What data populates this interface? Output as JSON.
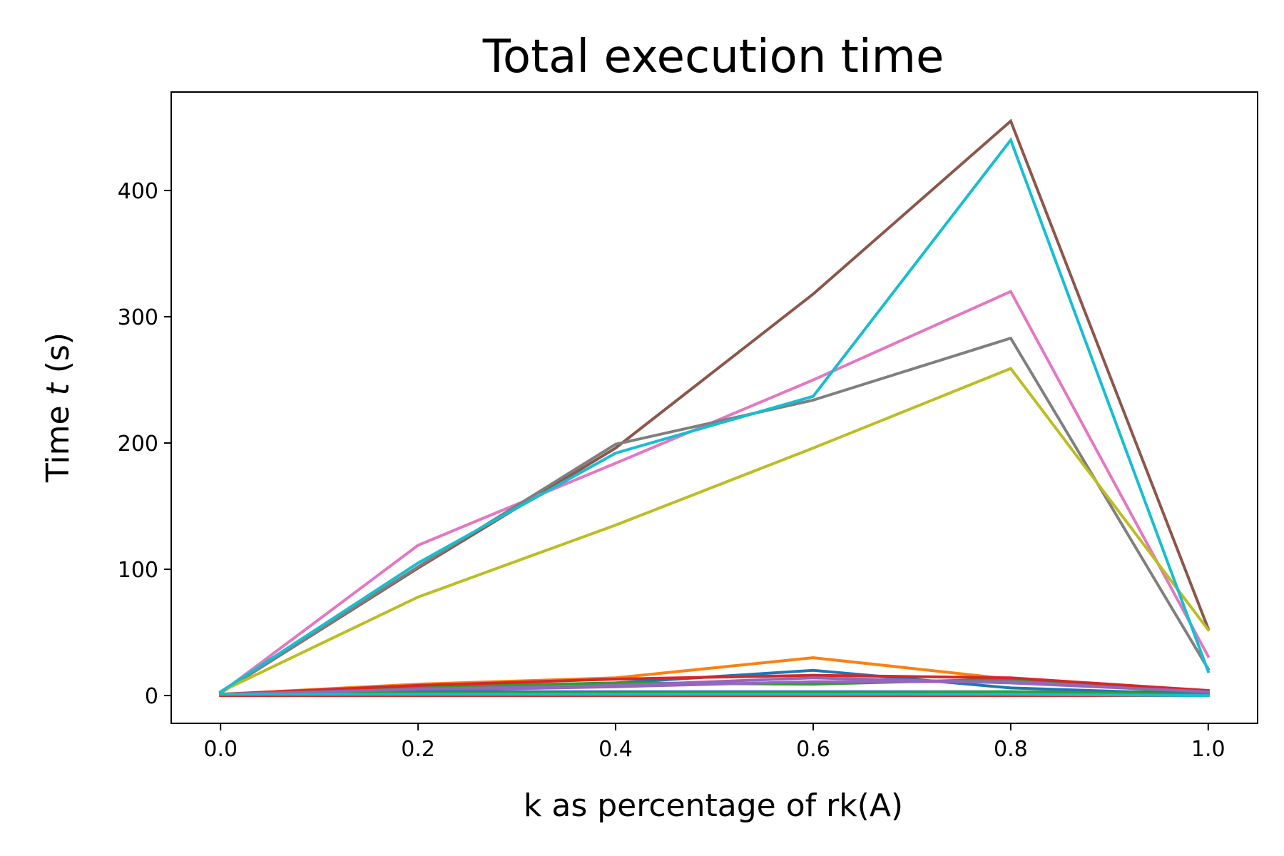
{
  "chart_data": {
    "type": "line",
    "title": "Total execution time",
    "xlabel": "k as percentage of rk(A)",
    "ylabel_prefix": "Time ",
    "ylabel_var": "t",
    "ylabel_suffix": " (s)",
    "xlim": [
      -0.05,
      1.05
    ],
    "ylim": [
      -22,
      478
    ],
    "x_ticks": [
      0.0,
      0.2,
      0.4,
      0.6,
      0.8,
      1.0
    ],
    "x_tick_labels": [
      "0.0",
      "0.2",
      "0.4",
      "0.6",
      "0.8",
      "1.0"
    ],
    "y_ticks": [
      0,
      100,
      200,
      300,
      400
    ],
    "y_tick_labels": [
      "0",
      "100",
      "200",
      "300",
      "400"
    ],
    "grid": false,
    "x": [
      0.0,
      0.2,
      0.4,
      0.6,
      0.8,
      1.0
    ],
    "series": [
      {
        "color": "#1f77b4",
        "values": [
          1,
          6,
          10,
          20,
          6,
          1
        ]
      },
      {
        "color": "#ff7f0e",
        "values": [
          1,
          9,
          14,
          30,
          13,
          2
        ]
      },
      {
        "color": "#2ca02c",
        "values": [
          1,
          7,
          10,
          9,
          13,
          1
        ]
      },
      {
        "color": "#d62728",
        "values": [
          0,
          0,
          0,
          0,
          0,
          0
        ]
      },
      {
        "color": "#9467bd",
        "values": [
          1,
          4,
          7,
          11,
          11,
          3
        ]
      },
      {
        "color": "#8c564b",
        "values": [
          2,
          101,
          196,
          318,
          455,
          53
        ]
      },
      {
        "color": "#e377c2",
        "values": [
          2,
          119,
          184,
          250,
          320,
          31
        ]
      },
      {
        "color": "#7f7f7f",
        "values": [
          2,
          102,
          199,
          234,
          283,
          21
        ]
      },
      {
        "color": "#bcbd22",
        "values": [
          3,
          78,
          135,
          196,
          259,
          52
        ]
      },
      {
        "color": "#17becf",
        "values": [
          3,
          105,
          192,
          237,
          440,
          19
        ]
      },
      {
        "color": "#1f77b4",
        "values": [
          1,
          3,
          3,
          3,
          3,
          2
        ]
      },
      {
        "color": "#ff7f0e",
        "values": [
          1,
          2,
          2,
          1,
          2,
          1
        ]
      },
      {
        "color": "#2ca02c",
        "values": [
          1,
          2,
          2,
          2,
          3,
          1
        ]
      },
      {
        "color": "#d62728",
        "values": [
          1,
          8,
          13,
          16,
          14,
          4
        ]
      },
      {
        "color": "#9467bd",
        "values": [
          1,
          5,
          8,
          14,
          10,
          3
        ]
      },
      {
        "color": "#17becf",
        "values": [
          1,
          1,
          1,
          1,
          1,
          0
        ]
      }
    ]
  }
}
